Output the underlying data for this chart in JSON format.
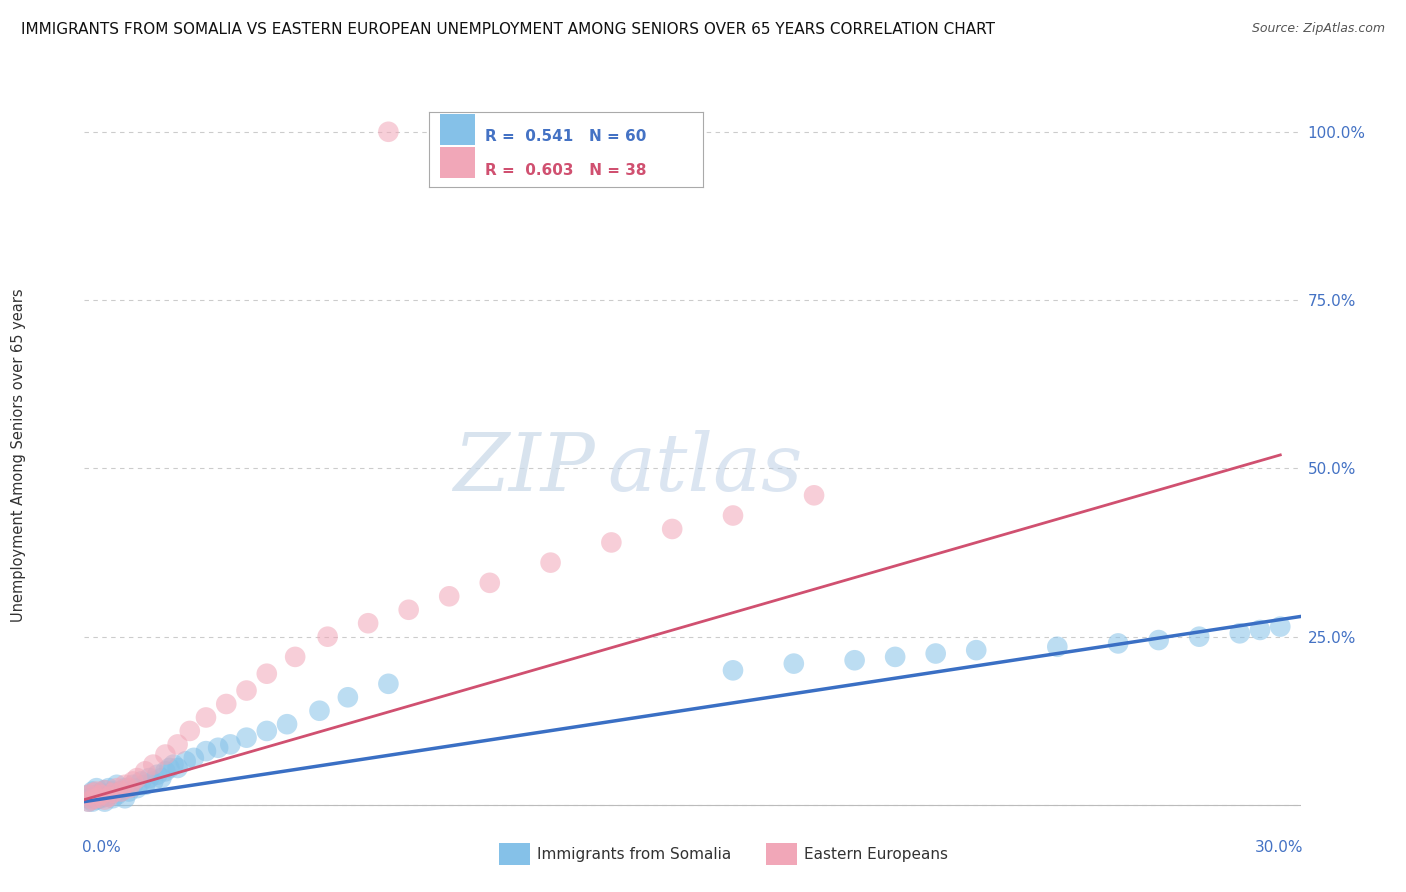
{
  "title": "IMMIGRANTS FROM SOMALIA VS EASTERN EUROPEAN UNEMPLOYMENT AMONG SENIORS OVER 65 YEARS CORRELATION CHART",
  "source": "Source: ZipAtlas.com",
  "ylabel_label": "Unemployment Among Seniors over 65 years",
  "legend1_r": "0.541",
  "legend1_n": "60",
  "legend2_r": "0.603",
  "legend2_n": "38",
  "blue_color": "#85C1E8",
  "pink_color": "#F1A7B8",
  "trend_blue": "#3A6FC4",
  "trend_pink": "#D05070",
  "watermark_zip": "ZIP",
  "watermark_atlas": "atlas",
  "blue_scatter_x": [
    0.001,
    0.001,
    0.001,
    0.002,
    0.002,
    0.002,
    0.003,
    0.003,
    0.003,
    0.004,
    0.004,
    0.005,
    0.005,
    0.005,
    0.006,
    0.006,
    0.007,
    0.007,
    0.008,
    0.008,
    0.009,
    0.01,
    0.01,
    0.011,
    0.012,
    0.013,
    0.014,
    0.015,
    0.016,
    0.017,
    0.018,
    0.019,
    0.02,
    0.021,
    0.022,
    0.023,
    0.025,
    0.027,
    0.03,
    0.033,
    0.036,
    0.04,
    0.045,
    0.05,
    0.058,
    0.065,
    0.075,
    0.16,
    0.175,
    0.19,
    0.2,
    0.21,
    0.22,
    0.24,
    0.255,
    0.265,
    0.275,
    0.285,
    0.29,
    0.295
  ],
  "blue_scatter_y": [
    0.005,
    0.01,
    0.015,
    0.005,
    0.012,
    0.02,
    0.008,
    0.015,
    0.025,
    0.01,
    0.018,
    0.005,
    0.012,
    0.022,
    0.015,
    0.025,
    0.01,
    0.02,
    0.015,
    0.03,
    0.02,
    0.01,
    0.025,
    0.02,
    0.03,
    0.025,
    0.035,
    0.03,
    0.04,
    0.035,
    0.045,
    0.04,
    0.05,
    0.055,
    0.06,
    0.055,
    0.065,
    0.07,
    0.08,
    0.085,
    0.09,
    0.1,
    0.11,
    0.12,
    0.14,
    0.16,
    0.18,
    0.2,
    0.21,
    0.215,
    0.22,
    0.225,
    0.23,
    0.235,
    0.24,
    0.245,
    0.25,
    0.255,
    0.26,
    0.265
  ],
  "pink_scatter_x": [
    0.001,
    0.001,
    0.002,
    0.002,
    0.003,
    0.003,
    0.004,
    0.005,
    0.005,
    0.006,
    0.007,
    0.008,
    0.009,
    0.01,
    0.011,
    0.012,
    0.013,
    0.015,
    0.017,
    0.02,
    0.023,
    0.026,
    0.03,
    0.035,
    0.04,
    0.045,
    0.052,
    0.06,
    0.07,
    0.08,
    0.09,
    0.1,
    0.115,
    0.13,
    0.145,
    0.16,
    0.18,
    0.075
  ],
  "pink_scatter_y": [
    0.005,
    0.015,
    0.008,
    0.018,
    0.01,
    0.02,
    0.015,
    0.008,
    0.022,
    0.012,
    0.018,
    0.025,
    0.02,
    0.03,
    0.025,
    0.035,
    0.04,
    0.05,
    0.06,
    0.075,
    0.09,
    0.11,
    0.13,
    0.15,
    0.17,
    0.195,
    0.22,
    0.25,
    0.27,
    0.29,
    0.31,
    0.33,
    0.36,
    0.39,
    0.41,
    0.43,
    0.46,
    1.0
  ],
  "blue_trend_x": [
    0.0,
    0.3
  ],
  "blue_trend_y": [
    0.005,
    0.28
  ],
  "pink_trend_x": [
    0.0,
    0.295
  ],
  "pink_trend_y": [
    0.008,
    0.52
  ],
  "xlim": [
    0.0,
    0.3
  ],
  "ylim": [
    -0.01,
    1.05
  ],
  "ytick_vals": [
    0.0,
    0.25,
    0.5,
    0.75,
    1.0
  ],
  "ytick_labels": [
    "",
    "25.0%",
    "50.0%",
    "75.0%",
    "100.0%"
  ],
  "background_color": "#FFFFFF",
  "grid_color": "#CCCCCC"
}
